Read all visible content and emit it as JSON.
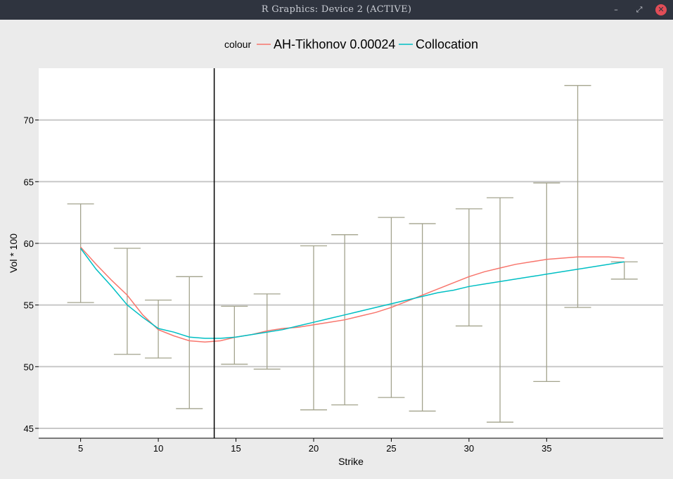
{
  "window": {
    "title": "R Graphics: Device 2 (ACTIVE)",
    "minimize_glyph": "–",
    "maximize_glyph": "⤢",
    "close_glyph": "✕"
  },
  "colors": {
    "tikhonov": "#F8766D",
    "collocation": "#00BFC4",
    "errorbar": "#a3a38d",
    "gridline": "#c8c8c8",
    "vline": "#000000"
  },
  "chart_data": {
    "type": "line",
    "xlabel": "Strike",
    "ylabel": "Vol * 100",
    "xlim": [
      2.3,
      42.5
    ],
    "ylim": [
      44.2,
      74.2
    ],
    "x_ticks": [
      5,
      10,
      15,
      20,
      25,
      30,
      35
    ],
    "y_ticks": [
      45,
      50,
      55,
      60,
      65,
      70
    ],
    "legend": {
      "title": "colour",
      "position": "top",
      "entries": [
        "AH-Tikhonov 0.00024",
        "Collocation"
      ]
    },
    "vline_x": 13.6,
    "error_bars": [
      {
        "x": 5.0,
        "low": 55.2,
        "high": 63.2
      },
      {
        "x": 8.0,
        "low": 51.0,
        "high": 59.6
      },
      {
        "x": 10.0,
        "low": 50.7,
        "high": 55.4
      },
      {
        "x": 12.0,
        "low": 46.6,
        "high": 57.3
      },
      {
        "x": 14.9,
        "low": 50.2,
        "high": 54.9
      },
      {
        "x": 17.0,
        "low": 49.8,
        "high": 55.9
      },
      {
        "x": 20.0,
        "low": 46.5,
        "high": 59.8
      },
      {
        "x": 22.0,
        "low": 46.9,
        "high": 60.7
      },
      {
        "x": 25.0,
        "low": 47.5,
        "high": 62.1
      },
      {
        "x": 27.0,
        "low": 46.4,
        "high": 61.6
      },
      {
        "x": 30.0,
        "low": 53.3,
        "high": 62.8
      },
      {
        "x": 32.0,
        "low": 45.5,
        "high": 63.7
      },
      {
        "x": 35.0,
        "low": 48.8,
        "high": 64.9
      },
      {
        "x": 37.0,
        "low": 54.8,
        "high": 72.8
      },
      {
        "x": 40.0,
        "low": 57.1,
        "high": 58.5
      }
    ],
    "series": [
      {
        "name": "AH-Tikhonov 0.00024",
        "x": [
          5,
          6,
          7,
          8,
          9,
          10,
          11,
          12,
          13,
          14,
          15,
          16,
          17,
          18,
          19,
          20,
          21,
          22,
          23,
          24,
          25,
          26,
          27,
          28,
          29,
          30,
          31,
          32,
          33,
          34,
          35,
          36,
          37,
          38,
          39,
          40
        ],
        "y": [
          59.7,
          58.3,
          57.0,
          55.8,
          54.2,
          53.0,
          52.5,
          52.1,
          52.0,
          52.1,
          52.4,
          52.6,
          52.9,
          53.1,
          53.2,
          53.4,
          53.6,
          53.8,
          54.1,
          54.4,
          54.8,
          55.3,
          55.8,
          56.3,
          56.8,
          57.3,
          57.7,
          58.0,
          58.3,
          58.5,
          58.7,
          58.8,
          58.9,
          58.9,
          58.9,
          58.8
        ]
      },
      {
        "name": "Collocation",
        "x": [
          5,
          6,
          7,
          8,
          9,
          10,
          11,
          12,
          13,
          14,
          15,
          16,
          17,
          18,
          19,
          20,
          21,
          22,
          23,
          24,
          25,
          26,
          27,
          28,
          29,
          30,
          31,
          32,
          33,
          34,
          35,
          36,
          37,
          38,
          39,
          40
        ],
        "y": [
          59.6,
          57.9,
          56.5,
          55.0,
          54.0,
          53.1,
          52.8,
          52.4,
          52.3,
          52.3,
          52.4,
          52.6,
          52.8,
          53.0,
          53.3,
          53.6,
          53.9,
          54.2,
          54.5,
          54.8,
          55.1,
          55.4,
          55.7,
          56.0,
          56.2,
          56.5,
          56.7,
          56.9,
          57.1,
          57.3,
          57.5,
          57.7,
          57.9,
          58.1,
          58.3,
          58.5
        ]
      }
    ]
  }
}
